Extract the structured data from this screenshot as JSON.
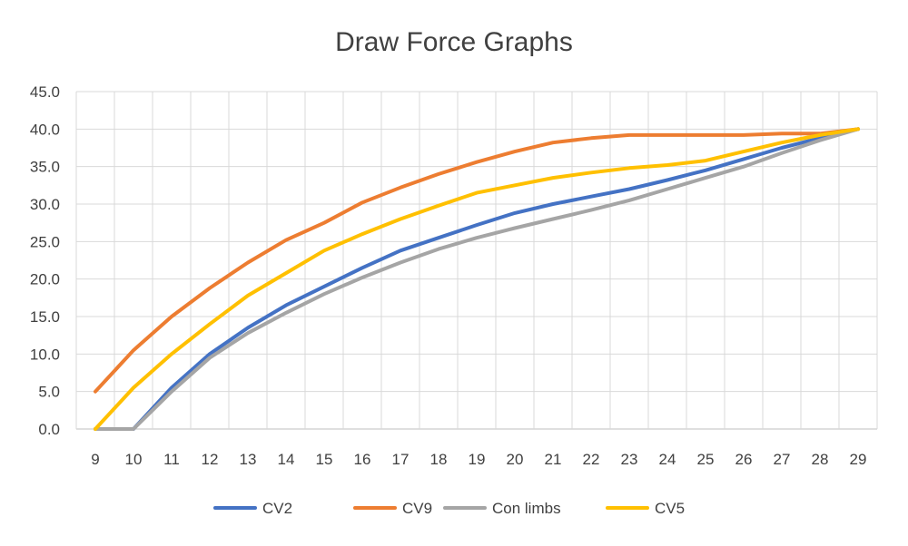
{
  "chart_data": {
    "type": "line",
    "title": "Draw Force Graphs",
    "xlabel": "",
    "ylabel": "",
    "x": [
      9,
      10,
      11,
      12,
      13,
      14,
      15,
      16,
      17,
      18,
      19,
      20,
      21,
      22,
      23,
      24,
      25,
      26,
      27,
      28,
      29
    ],
    "ylim": [
      0,
      45
    ],
    "yticks": [
      "0.0",
      "5.0",
      "10.0",
      "15.0",
      "20.0",
      "25.0",
      "30.0",
      "35.0",
      "40.0",
      "45.0"
    ],
    "grid": true,
    "legend_position": "bottom",
    "series": [
      {
        "name": "CV2",
        "color": "#4472c4",
        "values": [
          0,
          0,
          5.5,
          10.0,
          13.5,
          16.5,
          19.0,
          21.5,
          23.8,
          25.5,
          27.2,
          28.8,
          30.0,
          31.0,
          32.0,
          33.2,
          34.5,
          36.0,
          37.5,
          38.8,
          40.0
        ]
      },
      {
        "name": "CV9",
        "color": "#ed7d31",
        "values": [
          5.0,
          10.5,
          15.0,
          18.8,
          22.2,
          25.2,
          27.5,
          30.2,
          32.2,
          34.0,
          35.6,
          37.0,
          38.2,
          38.8,
          39.2,
          39.2,
          39.2,
          39.2,
          39.4,
          39.4,
          40.0
        ]
      },
      {
        "name": "Con limbs",
        "color": "#a5a5a5",
        "values": [
          0,
          0,
          5.0,
          9.5,
          12.8,
          15.5,
          18.0,
          20.2,
          22.2,
          24.0,
          25.5,
          26.8,
          28.0,
          29.2,
          30.5,
          32.0,
          33.5,
          35.0,
          36.8,
          38.5,
          40.0
        ]
      },
      {
        "name": "CV5",
        "color": "#ffc000",
        "values": [
          0,
          5.5,
          10.0,
          14.0,
          17.8,
          20.8,
          23.8,
          26.0,
          28.0,
          29.8,
          31.5,
          32.5,
          33.5,
          34.2,
          34.8,
          35.2,
          35.8,
          37.0,
          38.2,
          39.2,
          40.0
        ]
      }
    ]
  }
}
